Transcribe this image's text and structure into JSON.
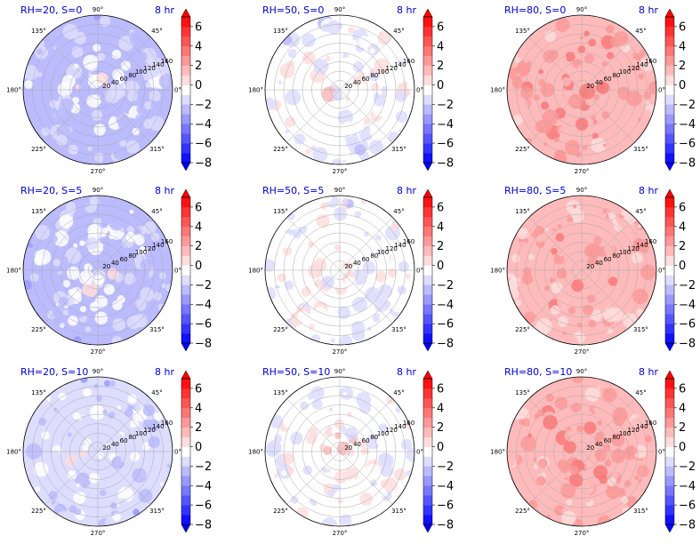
{
  "chart_data": {
    "type": "polar-contour",
    "colormap": "bwr",
    "colors": {
      "low": "#0000ff",
      "mid": "#ffffff",
      "high": "#ff0000",
      "title": "#0000cc"
    },
    "angle_ticks": [
      "0°",
      "45°",
      "90°",
      "135°",
      "180°",
      "225°",
      "270°",
      "315°"
    ],
    "radial_ticks": [
      "20",
      "40",
      "60",
      "80",
      "100",
      "120",
      "140",
      "160"
    ],
    "radial_max": 160,
    "colorbar": {
      "ticks": [
        "6",
        "4",
        "2",
        "0",
        "−2",
        "−4",
        "−6",
        "−8"
      ],
      "values": [
        6,
        4,
        2,
        0,
        -2,
        -4,
        -6,
        -8
      ],
      "range": [
        -8,
        7
      ],
      "levels": 15
    },
    "panels": [
      {
        "title": "RH=20, S=0",
        "time": "8 hr",
        "mean_level": -2.2
      },
      {
        "title": "RH=50, S=0",
        "time": "8 hr",
        "mean_level": -0.6
      },
      {
        "title": "RH=80, S=0",
        "time": "8 hr",
        "mean_level": 1.6
      },
      {
        "title": "RH=20, S=5",
        "time": "8 hr",
        "mean_level": -2.1
      },
      {
        "title": "RH=50, S=5",
        "time": "8 hr",
        "mean_level": -0.6
      },
      {
        "title": "RH=80, S=5",
        "time": "8 hr",
        "mean_level": 1.3
      },
      {
        "title": "RH=20, S=10",
        "time": "8 hr",
        "mean_level": -2.0
      },
      {
        "title": "RH=50, S=10",
        "time": "8 hr",
        "mean_level": -0.5
      },
      {
        "title": "RH=80, S=10",
        "time": "8 hr",
        "mean_level": 1.5
      }
    ]
  }
}
